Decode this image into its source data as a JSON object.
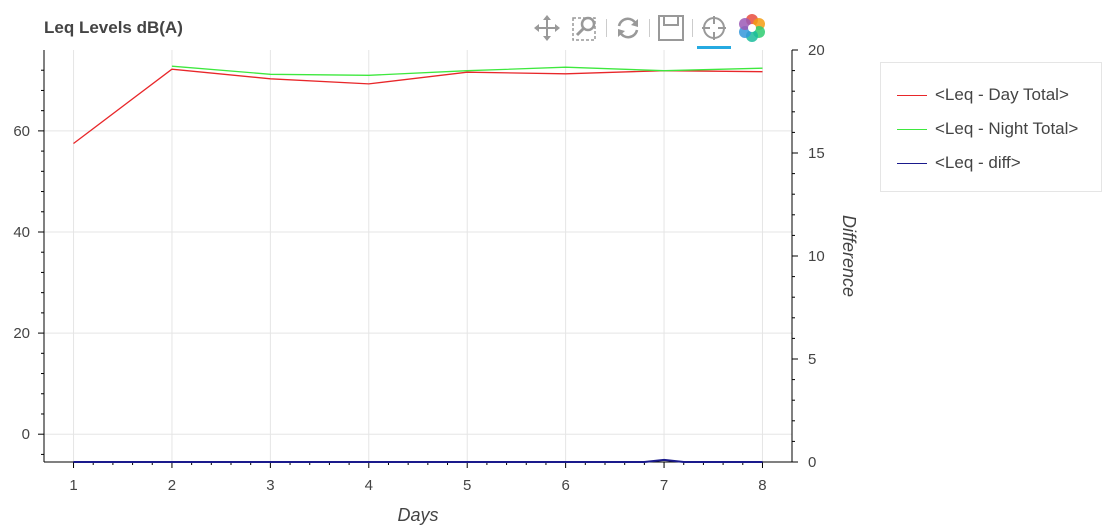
{
  "toolbar": {
    "tools": [
      {
        "name": "pan-tool",
        "icon": "move-arrows-icon"
      },
      {
        "name": "box-zoom-tool",
        "icon": "box-zoom-icon"
      },
      {
        "name": "reset-tool",
        "icon": "reset-icon"
      },
      {
        "name": "save-tool",
        "icon": "save-icon"
      },
      {
        "name": "crosshair-tool",
        "icon": "crosshair-icon",
        "active": true
      },
      {
        "name": "bokeh-logo",
        "icon": "bokeh-logo-icon"
      }
    ]
  },
  "chart_data": {
    "type": "line",
    "title": "Leq Levels dB(A)",
    "xlabel": "Days",
    "ylabel": "",
    "y2label": "Difference",
    "xlim": [
      0.7,
      8.3
    ],
    "ylim": [
      -5.5,
      76
    ],
    "y2lim": [
      0,
      20
    ],
    "xticks": [
      1,
      2,
      3,
      4,
      5,
      6,
      7,
      8
    ],
    "yticks": [
      0,
      20,
      40,
      60
    ],
    "y2ticks": [
      0,
      5,
      10,
      15,
      20
    ],
    "grid": true,
    "legend_position": "right",
    "series": [
      {
        "name": "<Leq - Day Total>",
        "axis": "left",
        "color": "#e8272a",
        "x": [
          1,
          2,
          3,
          4,
          5,
          6,
          7,
          8
        ],
        "y": [
          57.5,
          72.2,
          70.3,
          69.3,
          71.6,
          71.3,
          71.9,
          71.7
        ]
      },
      {
        "name": "<Leq - Night Total>",
        "axis": "left",
        "color": "#3ee83e",
        "x": [
          2,
          3,
          4,
          5,
          6,
          7,
          8
        ],
        "y": [
          72.8,
          71.2,
          71.0,
          71.9,
          72.6,
          71.9,
          72.4
        ]
      },
      {
        "name": "<Leq - diff>",
        "axis": "right",
        "color": "#1a1a8c",
        "x": [
          1,
          2,
          3,
          4,
          5,
          6,
          6.8,
          7,
          7.2,
          8
        ],
        "y": [
          0,
          0,
          0,
          0,
          0,
          0,
          0,
          0.1,
          0,
          0
        ]
      }
    ]
  }
}
